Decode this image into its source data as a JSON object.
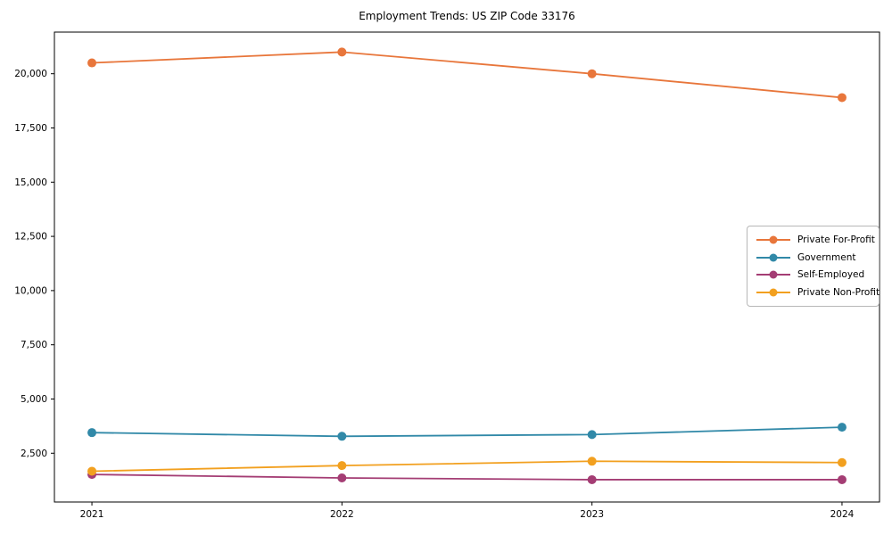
{
  "chart_data": {
    "type": "line",
    "title": "Employment Trends: US ZIP Code 33176",
    "xlabel": "",
    "ylabel": "",
    "grid": false,
    "legend_position": "center-right",
    "x": [
      2021,
      2022,
      2023,
      2024
    ],
    "x_tick_labels": [
      "2021",
      "2022",
      "2023",
      "2024"
    ],
    "xlim": [
      2020.85,
      2024.15
    ],
    "ylim": [
      250,
      21920
    ],
    "yticks": [
      2500,
      5000,
      7500,
      10000,
      12500,
      15000,
      17500,
      20000
    ],
    "ytick_labels": [
      "2,500",
      "5,000",
      "7,500",
      "10,000",
      "12,500",
      "15,000",
      "17,500",
      "20,000"
    ],
    "series": [
      {
        "name": "Private For-Profit",
        "color": "#E8763B",
        "values": [
          20500,
          21000,
          20000,
          18900
        ]
      },
      {
        "name": "Government",
        "color": "#3189A8",
        "values": [
          3450,
          3280,
          3360,
          3700
        ]
      },
      {
        "name": "Self-Employed",
        "color": "#A43D74",
        "values": [
          1520,
          1360,
          1280,
          1280
        ]
      },
      {
        "name": "Private Non-Profit",
        "color": "#F2A01F",
        "values": [
          1670,
          1930,
          2130,
          2070
        ]
      }
    ]
  }
}
